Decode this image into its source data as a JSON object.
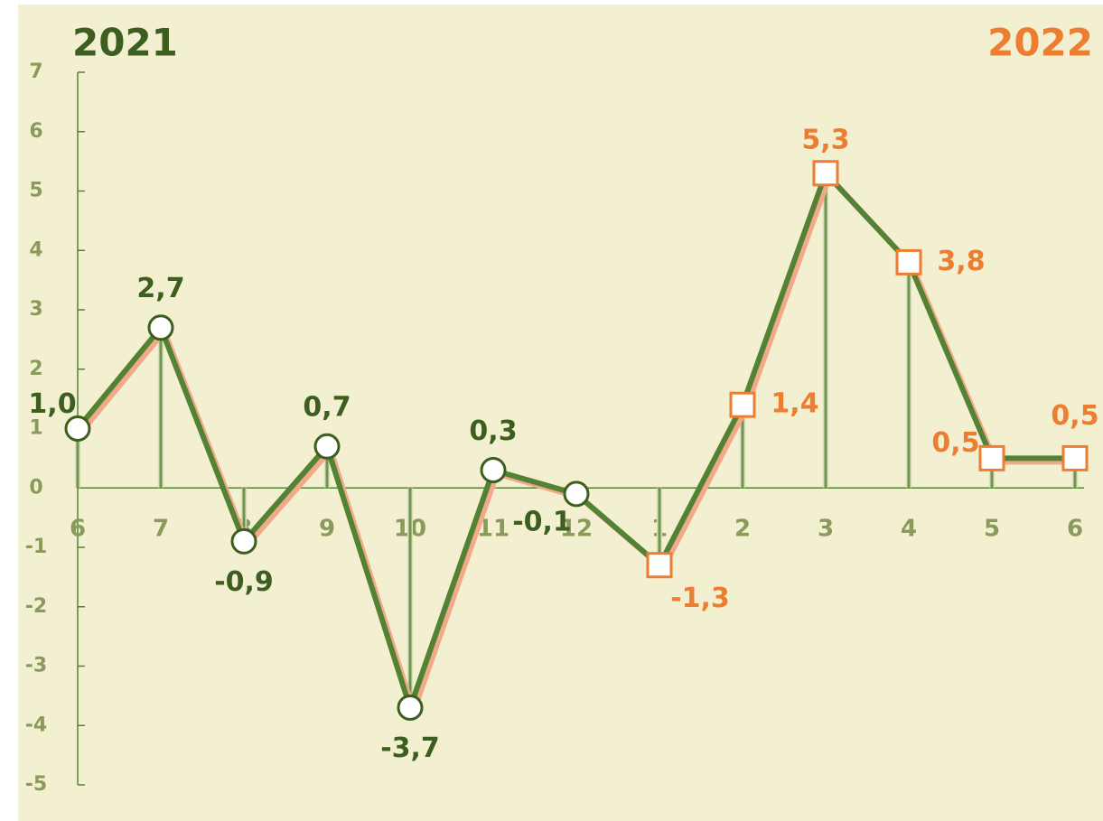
{
  "chart_data": {
    "type": "line",
    "annotations": [
      "2021",
      "2022"
    ],
    "categories": [
      "6",
      "7",
      "8",
      "9",
      "10",
      "11",
      "12",
      "1",
      "2",
      "3",
      "4",
      "5",
      "6"
    ],
    "series": [
      {
        "color": "#548235",
        "values": [
          1.0,
          2.7,
          -0.9,
          0.7,
          -3.7,
          0.3,
          -0.1,
          -1.3,
          1.4,
          5.3,
          3.8,
          0.5,
          0.5
        ],
        "value_labels": [
          "1,0",
          "2,7",
          "-0,9",
          "0,7",
          "-3,7",
          "0,3",
          "-0,1",
          "-1,3",
          "1,4",
          "5,3",
          "3,8",
          "0,5",
          "0,5"
        ],
        "markers": [
          "circle",
          "circle",
          "circle",
          "circle",
          "circle",
          "circle",
          "circle",
          "square",
          "square",
          "square",
          "square",
          "square",
          "square"
        ]
      }
    ],
    "ylim": [
      -5,
      7
    ],
    "yticks": [
      -5,
      -4,
      -3,
      -2,
      -1,
      0,
      1,
      2,
      3,
      4,
      5,
      6,
      7
    ]
  }
}
